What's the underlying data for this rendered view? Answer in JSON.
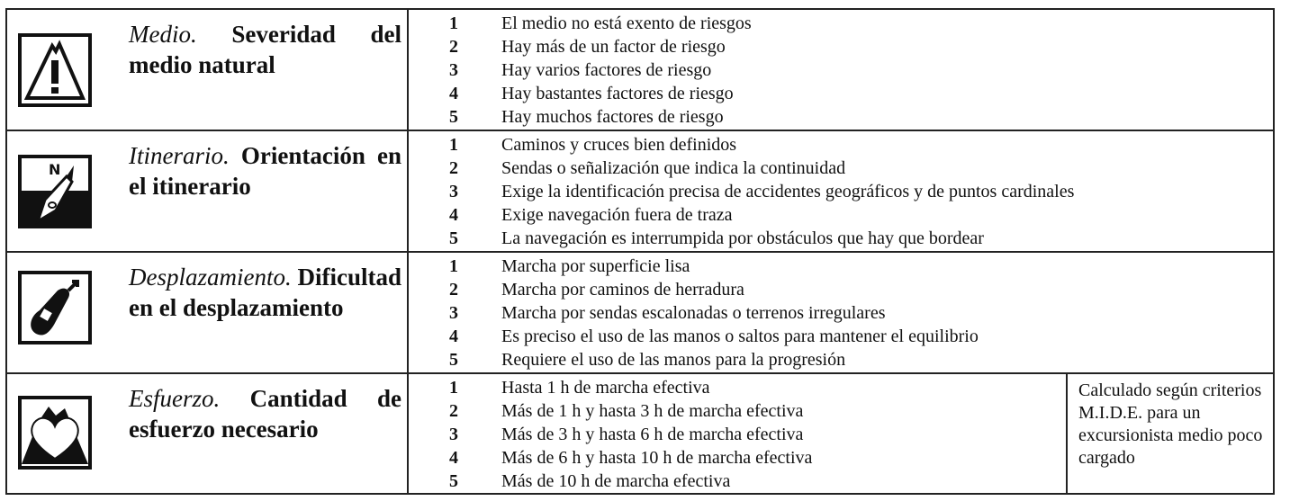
{
  "rows": [
    {
      "icon": "mountain-warning-icon",
      "title_italic": "Medio.",
      "title_bold": " Severidad del medio natural",
      "levels": [
        {
          "n": "1",
          "text": "El medio no está exento de riesgos"
        },
        {
          "n": "2",
          "text": "Hay más de un factor de riesgo"
        },
        {
          "n": "3",
          "text": "Hay varios factores de riesgo"
        },
        {
          "n": "4",
          "text": "Hay bastantes factores de riesgo"
        },
        {
          "n": "5",
          "text": "Hay muchos factores de riesgo"
        }
      ]
    },
    {
      "icon": "compass-orientation-icon",
      "title_italic": "Itinerario.",
      "title_bold": " Orientación en el itinerario",
      "levels": [
        {
          "n": "1",
          "text": "Caminos y cruces bien definidos"
        },
        {
          "n": "2",
          "text": "Sendas o señalización que indica la continuidad"
        },
        {
          "n": "3",
          "text": "Exige la identificación precisa de accidentes geográficos y de puntos cardinales"
        },
        {
          "n": "4",
          "text": "Exige navegación fuera de traza"
        },
        {
          "n": "5",
          "text": "La navegación es interrumpida por obstáculos que hay que bordear"
        }
      ]
    },
    {
      "icon": "footprint-icon",
      "title_italic": "Desplazamiento.",
      "title_bold": " Dificultad en el desplazamiento",
      "levels": [
        {
          "n": "1",
          "text": "Marcha por superficie lisa"
        },
        {
          "n": "2",
          "text": "Marcha por caminos de herradura"
        },
        {
          "n": "3",
          "text": "Marcha por sendas escalonadas o terrenos irregulares"
        },
        {
          "n": "4",
          "text": "Es preciso el uso de las manos o saltos para mantener el equilibrio"
        },
        {
          "n": "5",
          "text": "Requiere el uso de las manos para la progresión"
        }
      ]
    },
    {
      "icon": "heart-effort-icon",
      "title_italic": "Esfuerzo.",
      "title_bold": "  Cantidad de esfuerzo necesario",
      "levels": [
        {
          "n": "1",
          "text": "Hasta 1 h de marcha efectiva"
        },
        {
          "n": "2",
          "text": "Más de 1 h y hasta 3 h de marcha efectiva"
        },
        {
          "n": "3",
          "text": "Más de 3 h y hasta 6 h  de marcha efectiva"
        },
        {
          "n": "4",
          "text": "Más de 6 h y hasta 10 h  de marcha efectiva"
        },
        {
          "n": "5",
          "text": "Más de 10 h de marcha efectiva"
        }
      ],
      "note": "Calculado según criterios M.I.D.E. para un excursionista medio poco cargado"
    }
  ]
}
